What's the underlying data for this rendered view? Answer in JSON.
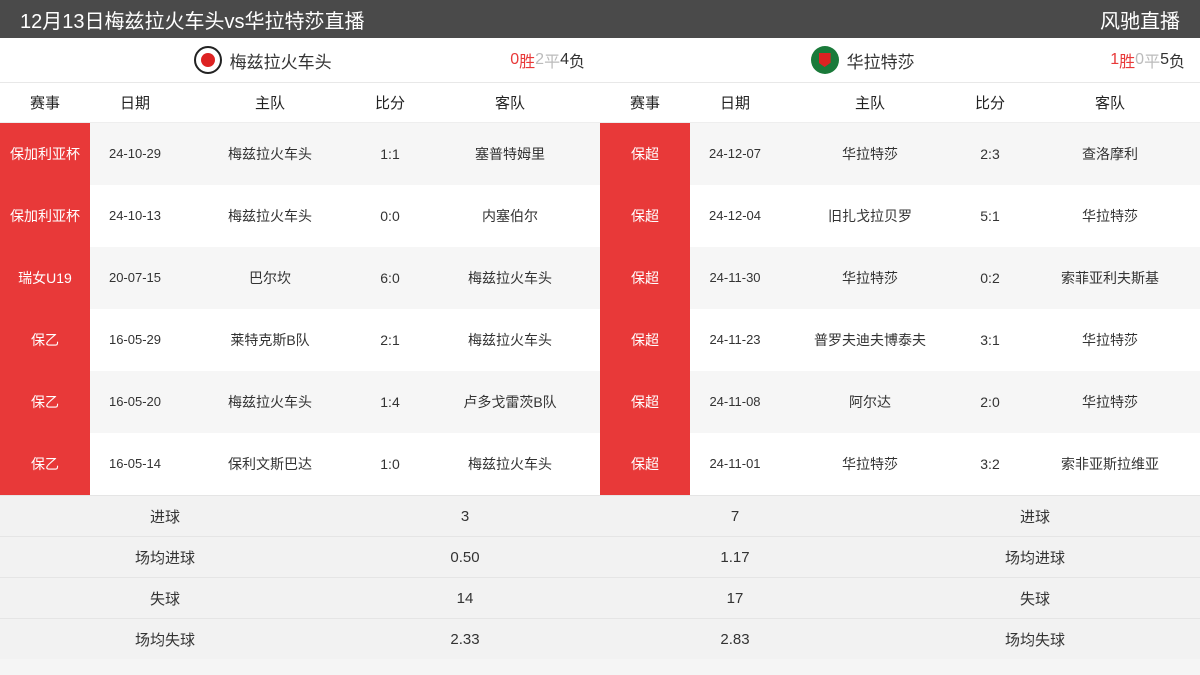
{
  "header": {
    "title": "12月13日梅兹拉火车头vs华拉特莎直播",
    "site": "风驰直播"
  },
  "colors": {
    "header_bg": "#4a4a4a",
    "comp_bg": "#e83939",
    "red_text": "#e83939",
    "gray_text": "#bbbbbb",
    "row_even": "#f6f6f6",
    "stats_bg": "#f2f2f2"
  },
  "columns": {
    "competition": "赛事",
    "date": "日期",
    "home": "主队",
    "score": "比分",
    "away": "客队"
  },
  "left": {
    "team_name": "梅兹拉火车头",
    "logo_bg": "#222",
    "logo_inner": "#d22",
    "record_win_n": "0",
    "record_win_t": "胜",
    "record_draw_n": "2",
    "record_draw_t": "平",
    "record_loss_n": "4",
    "record_loss_t": "负",
    "rows": [
      {
        "comp": "保加利亚杯",
        "date": "24-10-29",
        "home": "梅兹拉火车头",
        "score": "1:1",
        "away": "塞普特姆里"
      },
      {
        "comp": "保加利亚杯",
        "date": "24-10-13",
        "home": "梅兹拉火车头",
        "score": "0:0",
        "away": "内塞伯尔"
      },
      {
        "comp": "瑞女U19",
        "date": "20-07-15",
        "home": "巴尔坎",
        "score": "6:0",
        "away": "梅兹拉火车头"
      },
      {
        "comp": "保乙",
        "date": "16-05-29",
        "home": "莱特克斯B队",
        "score": "2:1",
        "away": "梅兹拉火车头"
      },
      {
        "comp": "保乙",
        "date": "16-05-20",
        "home": "梅兹拉火车头",
        "score": "1:4",
        "away": "卢多戈雷茨B队"
      },
      {
        "comp": "保乙",
        "date": "16-05-14",
        "home": "保利文斯巴达",
        "score": "1:0",
        "away": "梅兹拉火车头"
      }
    ],
    "stats": [
      {
        "label": "进球",
        "value": "3"
      },
      {
        "label": "场均进球",
        "value": "0.50"
      },
      {
        "label": "失球",
        "value": "14"
      },
      {
        "label": "场均失球",
        "value": "2.33"
      }
    ]
  },
  "right": {
    "team_name": "华拉特莎",
    "logo_bg": "#1a7a3a",
    "logo_inner": "#d22",
    "record_win_n": "1",
    "record_win_t": "胜",
    "record_draw_n": "0",
    "record_draw_t": "平",
    "record_loss_n": "5",
    "record_loss_t": "负",
    "rows": [
      {
        "comp": "保超",
        "date": "24-12-07",
        "home": "华拉特莎",
        "score": "2:3",
        "away": "查洛摩利"
      },
      {
        "comp": "保超",
        "date": "24-12-04",
        "home": "旧扎戈拉贝罗",
        "score": "5:1",
        "away": "华拉特莎"
      },
      {
        "comp": "保超",
        "date": "24-11-30",
        "home": "华拉特莎",
        "score": "0:2",
        "away": "索菲亚利夫斯基"
      },
      {
        "comp": "保超",
        "date": "24-11-23",
        "home": "普罗夫迪夫博泰夫",
        "score": "3:1",
        "away": "华拉特莎"
      },
      {
        "comp": "保超",
        "date": "24-11-08",
        "home": "阿尔达",
        "score": "2:0",
        "away": "华拉特莎"
      },
      {
        "comp": "保超",
        "date": "24-11-01",
        "home": "华拉特莎",
        "score": "3:2",
        "away": "索非亚斯拉维亚"
      }
    ],
    "stats": [
      {
        "label": "进球",
        "value": "7"
      },
      {
        "label": "场均进球",
        "value": "1.17"
      },
      {
        "label": "失球",
        "value": "17"
      },
      {
        "label": "场均失球",
        "value": "2.83"
      }
    ]
  }
}
